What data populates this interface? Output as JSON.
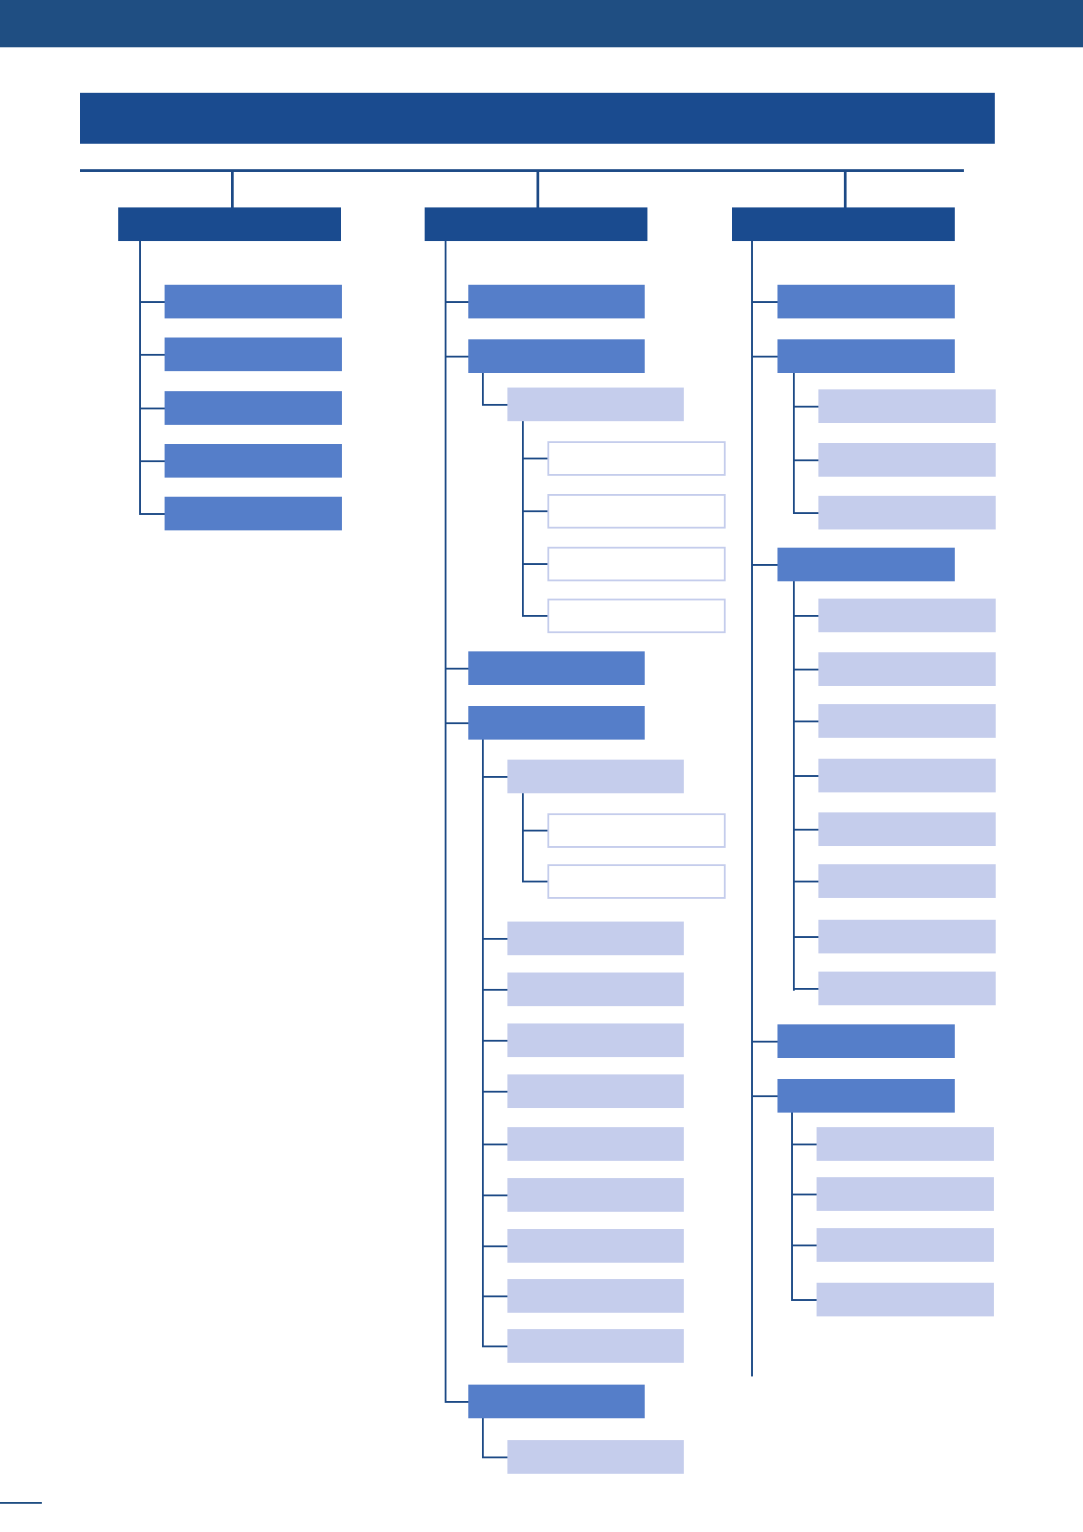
{
  "header": {
    "band_color": "#1f4e82",
    "title": ""
  },
  "colors": {
    "level0": "#1a4b8f",
    "level1": "#557ec9",
    "level2": "#c5cdec",
    "level3_border": "#c5cdec",
    "connector": "#1d4a86"
  },
  "columns": [
    {
      "label": "",
      "children": [
        {
          "label": ""
        },
        {
          "label": ""
        },
        {
          "label": ""
        },
        {
          "label": ""
        },
        {
          "label": ""
        }
      ]
    },
    {
      "label": "",
      "children": [
        {
          "label": ""
        },
        {
          "label": "",
          "children": [
            {
              "label": "",
              "children": [
                {
                  "label": ""
                },
                {
                  "label": ""
                },
                {
                  "label": ""
                },
                {
                  "label": ""
                }
              ]
            }
          ]
        },
        {
          "label": ""
        },
        {
          "label": "",
          "children": [
            {
              "label": "",
              "children": [
                {
                  "label": ""
                },
                {
                  "label": ""
                }
              ]
            },
            {
              "label": ""
            },
            {
              "label": ""
            },
            {
              "label": ""
            },
            {
              "label": ""
            },
            {
              "label": ""
            },
            {
              "label": ""
            },
            {
              "label": ""
            },
            {
              "label": ""
            },
            {
              "label": ""
            }
          ]
        },
        {
          "label": "",
          "children": [
            {
              "label": ""
            }
          ]
        }
      ]
    },
    {
      "label": "",
      "children": [
        {
          "label": ""
        },
        {
          "label": "",
          "children": [
            {
              "label": ""
            },
            {
              "label": ""
            },
            {
              "label": ""
            }
          ]
        },
        {
          "label": "",
          "children": [
            {
              "label": ""
            },
            {
              "label": ""
            },
            {
              "label": ""
            },
            {
              "label": ""
            },
            {
              "label": ""
            },
            {
              "label": ""
            },
            {
              "label": ""
            },
            {
              "label": ""
            }
          ]
        },
        {
          "label": ""
        },
        {
          "label": "",
          "children": [
            {
              "label": ""
            },
            {
              "label": ""
            },
            {
              "label": ""
            },
            {
              "label": ""
            }
          ]
        }
      ]
    }
  ]
}
